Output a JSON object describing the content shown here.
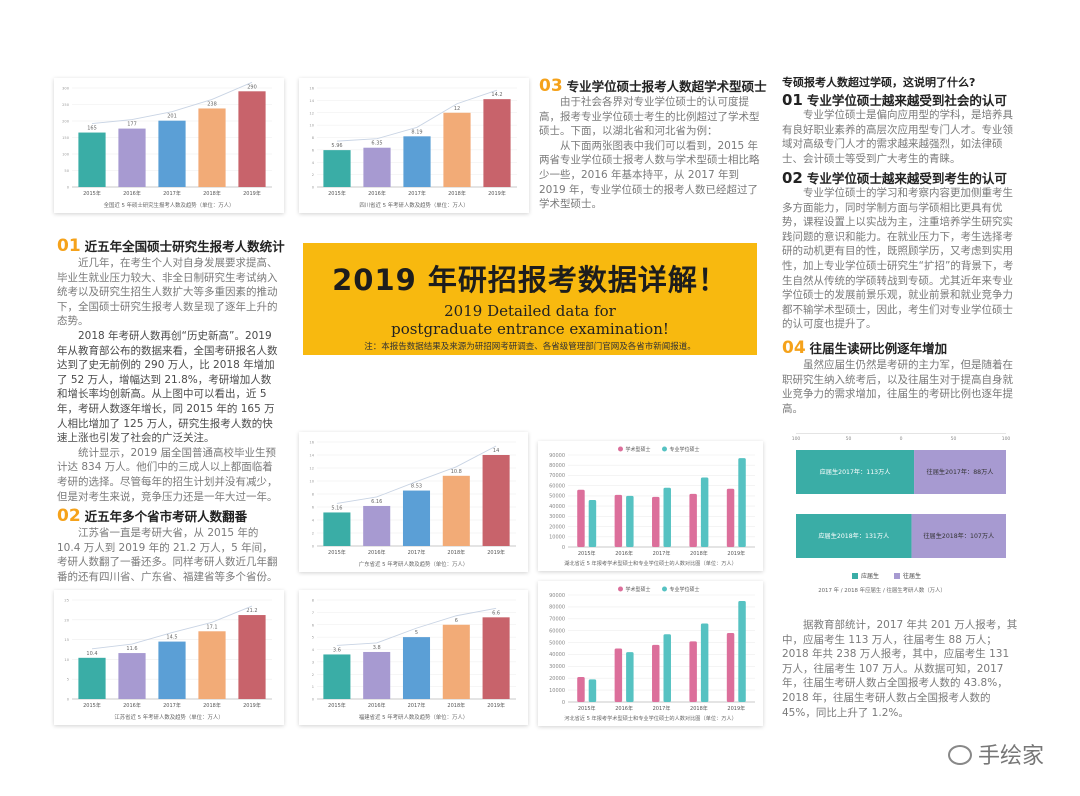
{
  "banner": {
    "title": "2019 年研招报考数据详解！",
    "en_line1": "2019 Detailed data for",
    "en_line2": "postgraduate entrance examination!",
    "note": "注：本报告数据结果及来源为研招网考研调查、各省级管理部门官网及各省市新闻报道。"
  },
  "sections": {
    "s01": {
      "num": "01",
      "title": "近五年全国硕士研究生报考人数统计",
      "paras": [
        "近几年，在考生个人对自身发展要求提高、毕业生就业压力较大、非全日制研究生考试纳入统考以及研究生招生人数扩大等多重因素的推动下，全国硕士研究生报考人数呈现了逐年上升的态势。",
        "2018 年考研人数再创“历史新高”。2019 年从教育部公布的数据来看，全国考研报名人数达到了史无前例的 290 万人，比 2018 年增加了 52 万人，增幅达到 21.8%，考研增加人数和增长率均创新高。从上图中可以看出，近 5 年，考研人数逐年增长，同 2015 年的 165 万人相比增加了 125 万人，研究生报考人数的快速上涨也引发了社会的广泛关注。",
        "统计显示，2019 届全国普通高校毕业生预计达 834 万人。他们中的三成人以上都面临着考研的选择。尽管每年的招生计划并没有减少，但是对考生来说，竞争压力还是一年大过一年。"
      ]
    },
    "s02": {
      "num": "02",
      "title": "近五年多个省市考研人数翻番",
      "paras": [
        "江苏省一直是考研大省，从 2015 年的 10.4 万人到 2019 年的 21.2 万人，5 年间，考研人数翻了一番还多。同样考研人数近几年翻番的还有四川省、广东省、福建省等多个省份。"
      ]
    },
    "s03": {
      "num": "03",
      "title": "专业学位硕士报考人数超学术型硕士",
      "paras": [
        "由于社会各界对专业学位硕士的认可度提高，报考专业学位硕士考生的比例超过了学术型硕士。下面，以湖北省和河北省为例：",
        "从下面两张图表中我们可以看到，2015 年两省专业学位硕士报考人数与学术型硕士相比略少一些，2016 年基本持平，从 2017 年到 2019 年，专业学位硕士的报考人数已经超过了学术型硕士。"
      ]
    },
    "right_head": "专硕报考人数超过学硕，这说明了什么?",
    "r01": {
      "num": "01",
      "title": "专业学位硕士越来越受到社会的认可",
      "paras": [
        "专业学位硕士是偏向应用型的学科，是培养具有良好职业素养的高层次应用型专门人才。专业领域对高级专门人才的需求越来越强烈，如法律硕士、会计硕士等受到广大考生的青睐。"
      ]
    },
    "r02": {
      "num": "02",
      "title": "专业学位硕士越来越受到考生的认可",
      "paras": [
        "专业学位硕士的学习和考察内容更加侧重考生多方面能力，同时学制方面与学硕相比更具有优势，课程设置上以实战为主，注重培养学生研究实践问题的意识和能力。在就业压力下，考生选择考研的动机更有目的性，既照顾学历，又考虑到实用性，加上专业学位硕士研究生“扩招”的背景下，考生自然从传统的学硕转战到专硕。尤其近年来专业学位硕士的发展前景乐观，就业前景和就业竞争力都不输学术型硕士，因此，考生们对专业学位硕士的认可度也提升了。"
      ]
    },
    "r04": {
      "num": "04",
      "title": "往届生读研比例逐年增加",
      "paras": [
        "虽然应届生仍然是考研的主力军，但是随着在职研究生纳入统考后，以及往届生对于提高自身就业竞争力的需求增加，往届生的考研比例也逐年提高。"
      ]
    },
    "r_bottom": {
      "paras": [
        "据教育部统计，2017 年共 201 万人报考，其中，应届考生 113 万人，往届考生 88 万人；2018 年共 238 万人报考，其中，应届考生 131 万人，往届考生 107 万人。从数据可知，2017 年，往届生考研人数占全国报考人数的 43.8%，2018 年，往届生考研人数占全国报考人数的 45%，同比上升了 1.2%。"
      ]
    }
  },
  "watermark": "手绘家",
  "chart_data": [
    {
      "id": "national",
      "type": "bar",
      "title": "全国近 5 年硕士研究生报考人数及趋势（单位：万人）",
      "categories": [
        "2015年",
        "2016年",
        "2017年",
        "2018年",
        "2019年"
      ],
      "values": [
        165,
        177,
        201,
        238,
        290
      ],
      "ylim": [
        0,
        300
      ],
      "yticks": [
        0,
        50,
        100,
        150,
        200,
        250,
        300
      ]
    },
    {
      "id": "sichuan",
      "type": "bar",
      "title": "四川省近 5 年考研人数及趋势（单位：万人）",
      "categories": [
        "2015年",
        "2016年",
        "2017年",
        "2018年",
        "2019年"
      ],
      "values": [
        5.96,
        6.35,
        8.19,
        12,
        14.2
      ],
      "ylim": [
        0,
        16
      ],
      "yticks": [
        0,
        2,
        4,
        6,
        8,
        10,
        12,
        14,
        16
      ]
    },
    {
      "id": "guangdong",
      "type": "bar",
      "title": "广东省近 5 年考研人数及趋势（单位：万人）",
      "categories": [
        "2015年",
        "2016年",
        "2017年",
        "2018年",
        "2019年"
      ],
      "values": [
        5.16,
        6.16,
        8.53,
        10.8,
        14
      ],
      "ylim": [
        0,
        16
      ],
      "yticks": [
        0,
        2,
        4,
        6,
        8,
        10,
        12,
        14,
        16
      ]
    },
    {
      "id": "jiangsu",
      "type": "bar",
      "title": "江苏省近 5 年考研人数及趋势（单位：万人）",
      "categories": [
        "2015年",
        "2016年",
        "2017年",
        "2018年",
        "2019年"
      ],
      "values": [
        10.4,
        11.6,
        14.5,
        17.1,
        21.2
      ],
      "ylim": [
        0,
        25
      ],
      "yticks": [
        0,
        5,
        10,
        15,
        20,
        25
      ]
    },
    {
      "id": "fujian",
      "type": "bar",
      "title": "福建省近 5 年考研人数及趋势（单位：万人）",
      "categories": [
        "2015年",
        "2016年",
        "2017年",
        "2018年",
        "2019年"
      ],
      "values": [
        3.6,
        3.8,
        5.0,
        6.0,
        6.6
      ],
      "ylim": [
        0,
        8
      ],
      "yticks": [
        0,
        1,
        2,
        3,
        4,
        5,
        6,
        7,
        8
      ]
    },
    {
      "id": "hubei",
      "type": "bar",
      "title": "湖北省近 5 年报考学术型硕士和专业学位硕士的人数对比图（单位：万人）",
      "categories": [
        "2015年",
        "2016年",
        "2017年",
        "2018年",
        "2019年"
      ],
      "series": [
        {
          "name": "学术型硕士",
          "values": [
            56000,
            51000,
            49000,
            52000,
            57000
          ]
        },
        {
          "name": "专业学位硕士",
          "values": [
            46000,
            50000,
            58000,
            68000,
            87000
          ]
        }
      ],
      "ylim": [
        0,
        90000
      ],
      "yticks": [
        0,
        10000,
        20000,
        30000,
        40000,
        50000,
        60000,
        70000,
        80000,
        90000
      ],
      "legend": "top"
    },
    {
      "id": "hebei",
      "type": "bar",
      "title": "河北省近 5 年报考学术型硕士和专业学位硕士的人数对比图（单位：万人）",
      "categories": [
        "2015年",
        "2016年",
        "2017年",
        "2018年",
        "2019年"
      ],
      "series": [
        {
          "name": "学术型硕士",
          "values": [
            21000,
            45000,
            48000,
            51000,
            58000
          ]
        },
        {
          "name": "专业学位硕士",
          "values": [
            19000,
            42000,
            57000,
            66000,
            85000
          ]
        }
      ],
      "ylim": [
        0,
        90000
      ],
      "yticks": [
        0,
        10000,
        20000,
        30000,
        40000,
        50000,
        60000,
        70000,
        80000,
        90000
      ],
      "legend": "top"
    },
    {
      "id": "fresh_ratio",
      "type": "bar",
      "orientation": "horizontal-stacked",
      "title": "2017 年 / 2018 年应届生 / 往届生考研人数（万人）",
      "scale_ticks": [
        "100",
        "50",
        "0",
        "50",
        "100"
      ],
      "rows": [
        {
          "fresh_label": "应届生2017年：113万人",
          "prior_label": "往届生2017年：88万人",
          "fresh": 113,
          "prior": 88
        },
        {
          "fresh_label": "应届生2018年：131万人",
          "prior_label": "往届生2018年：107万人",
          "fresh": 131,
          "prior": 107
        }
      ],
      "series": [
        {
          "name": "应届生",
          "color": "#3aada6"
        },
        {
          "name": "往届生",
          "color": "#a79ad1"
        }
      ]
    }
  ],
  "colors": {
    "teal": "#3aada6",
    "purple": "#a79ad1",
    "blue": "#5b9fd6",
    "orange": "#f2ab77",
    "red": "#c8636b",
    "pink": "#dc6f9b",
    "cyan": "#56c2c2",
    "banner": "#f8b90f"
  }
}
